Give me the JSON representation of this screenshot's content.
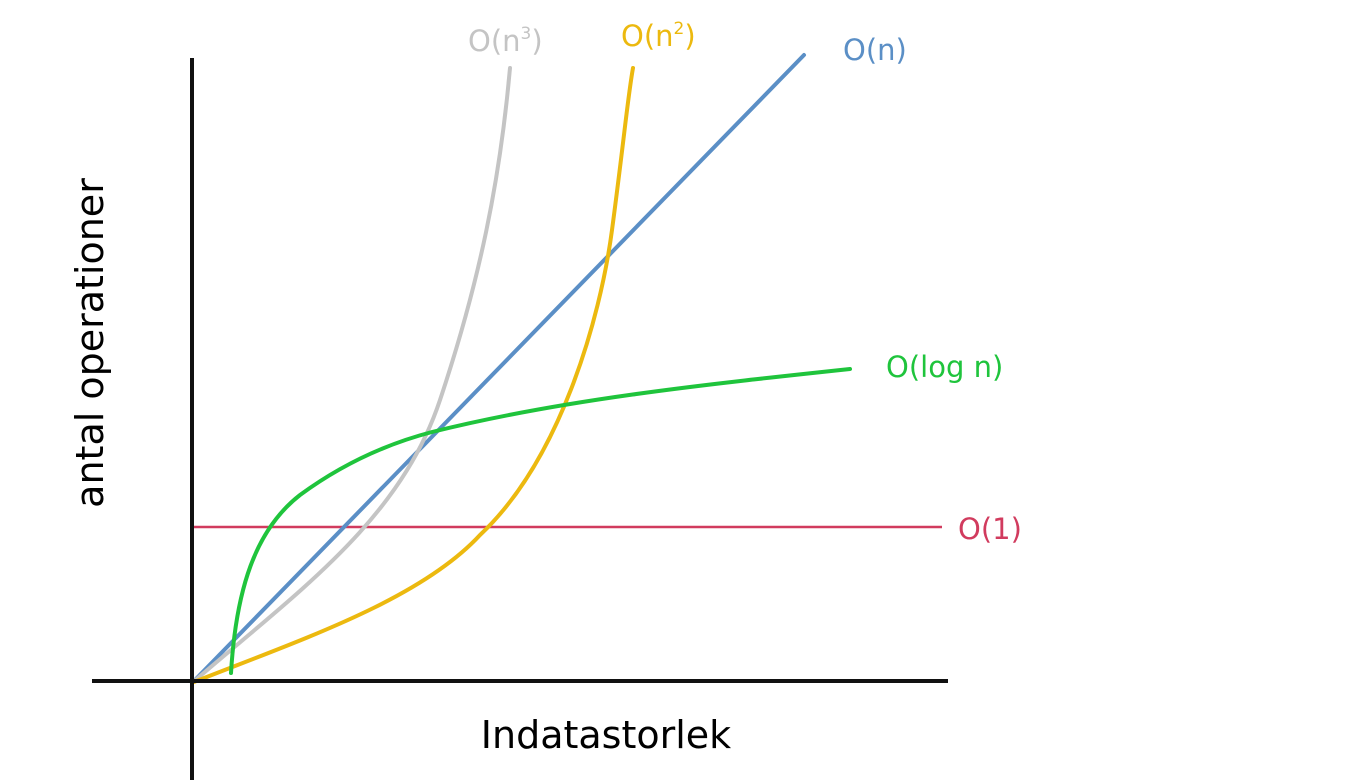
{
  "diagram": {
    "x_axis_label": "Indatastorlek",
    "y_axis_label": "antal operationer",
    "curves": [
      {
        "id": "o1",
        "label": "O(1)",
        "color": "#d13b5e"
      },
      {
        "id": "ologn",
        "label": "O(log n)",
        "color": "#1fc43c"
      },
      {
        "id": "on",
        "label": "O(n)",
        "color": "#5b8fc6"
      },
      {
        "id": "on2",
        "label_base": "O(n",
        "label_exp": "2",
        "label_close": ")",
        "color": "#ecb90f"
      },
      {
        "id": "on3",
        "label_base": "O(n",
        "label_exp": "3",
        "label_close": ")",
        "color": "#c4c4c4"
      }
    ],
    "axis_color": "#111111"
  }
}
